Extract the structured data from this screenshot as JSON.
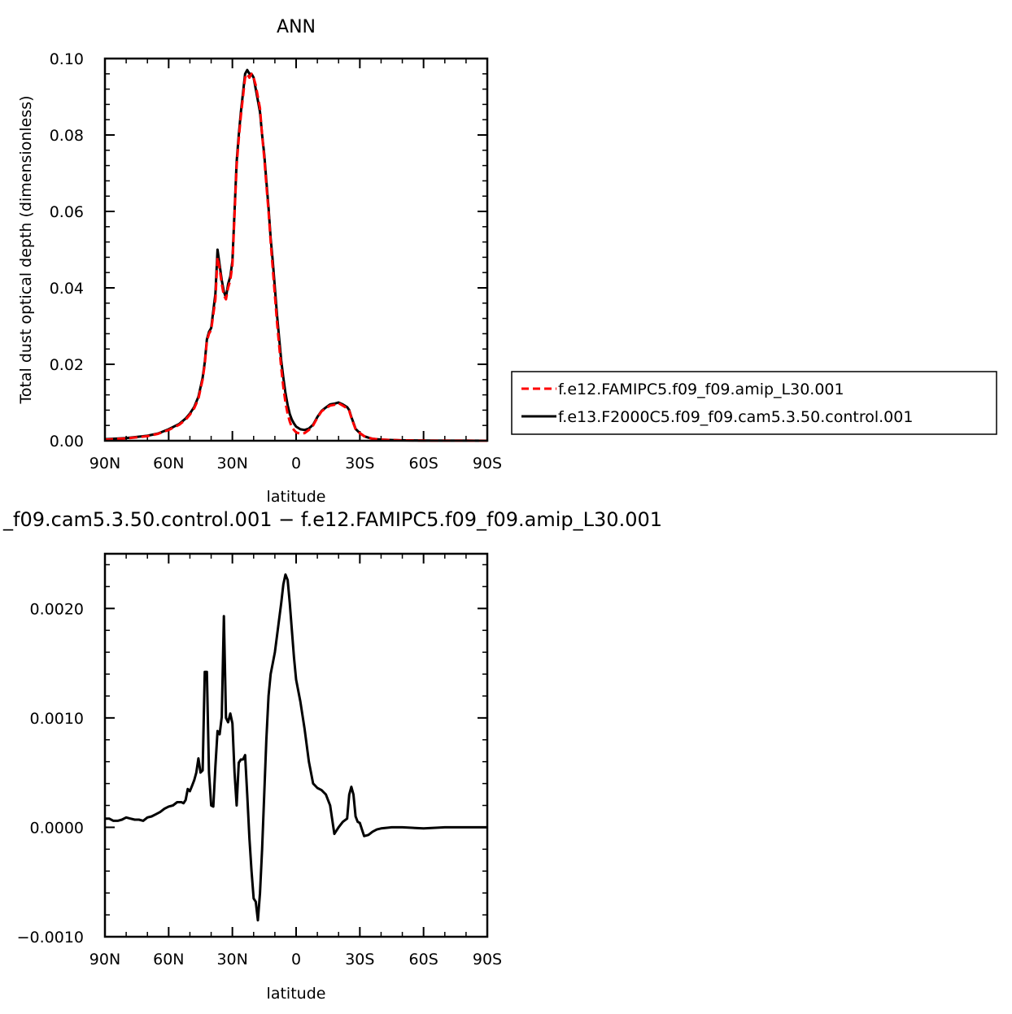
{
  "chart_data": [
    {
      "type": "line",
      "title": "ANN",
      "xlabel": "latitude",
      "ylabel": "Total dust optical depth (dimensionless)",
      "xlim": [
        90,
        -90
      ],
      "ylim": [
        0.0,
        0.1
      ],
      "x_ticks": [
        {
          "value": 90,
          "label": "90N"
        },
        {
          "value": 60,
          "label": "60N"
        },
        {
          "value": 30,
          "label": "30N"
        },
        {
          "value": 0,
          "label": "0"
        },
        {
          "value": -30,
          "label": "30S"
        },
        {
          "value": -60,
          "label": "60S"
        },
        {
          "value": -90,
          "label": "90S"
        }
      ],
      "y_ticks": [
        {
          "value": 0.0,
          "label": "0.00"
        },
        {
          "value": 0.02,
          "label": "0.02"
        },
        {
          "value": 0.04,
          "label": "0.04"
        },
        {
          "value": 0.06,
          "label": "0.06"
        },
        {
          "value": 0.08,
          "label": "0.08"
        },
        {
          "value": 0.1,
          "label": "0.10"
        }
      ],
      "grid": false,
      "legend_position": "right",
      "series": [
        {
          "name": "f.e12.FAMIPC5.f09_f09.amip_L30.001",
          "color": "#ff0000",
          "dash": "dashed",
          "x": [
            90,
            80,
            70,
            65,
            60,
            55,
            52,
            50,
            48,
            46,
            44,
            43,
            42,
            41,
            40,
            38,
            37,
            36,
            35,
            34,
            33,
            32,
            31,
            30,
            28,
            27,
            26,
            25,
            24,
            23,
            22,
            21,
            20,
            19,
            18,
            17,
            16,
            15,
            14,
            13,
            12,
            11,
            10,
            9,
            8,
            7,
            6,
            5,
            4,
            3,
            2,
            1,
            0,
            -2,
            -4,
            -6,
            -8,
            -10,
            -12,
            -14,
            -16,
            -18,
            -20,
            -22,
            -24,
            -25,
            -26,
            -27,
            -28,
            -30,
            -32,
            -34,
            -36,
            -40,
            -45,
            -50,
            -60,
            -70,
            -80,
            -90
          ],
          "y": [
            0.0003,
            0.0006,
            0.0012,
            0.0018,
            0.0028,
            0.0042,
            0.0055,
            0.0068,
            0.0085,
            0.011,
            0.016,
            0.02,
            0.026,
            0.028,
            0.029,
            0.037,
            0.048,
            0.045,
            0.041,
            0.038,
            0.037,
            0.04,
            0.042,
            0.046,
            0.072,
            0.079,
            0.085,
            0.09,
            0.095,
            0.096,
            0.095,
            0.096,
            0.095,
            0.093,
            0.09,
            0.087,
            0.08,
            0.074,
            0.067,
            0.06,
            0.052,
            0.045,
            0.038,
            0.031,
            0.025,
            0.019,
            0.014,
            0.01,
            0.007,
            0.005,
            0.0035,
            0.0028,
            0.0022,
            0.0018,
            0.002,
            0.0028,
            0.004,
            0.006,
            0.0077,
            0.0085,
            0.0092,
            0.0094,
            0.0098,
            0.0092,
            0.0085,
            0.0078,
            0.006,
            0.0045,
            0.003,
            0.002,
            0.0012,
            0.0008,
            0.0005,
            0.0003,
            0.0002,
            0.0001,
            5e-05,
            3e-05,
            2e-05,
            1e-05
          ]
        },
        {
          "name": "f.e13.F2000C5.f09_f09.cam5.3.50.control.001",
          "color": "#000000",
          "dash": "solid",
          "x": [
            90,
            80,
            70,
            65,
            60,
            55,
            52,
            50,
            48,
            46,
            44,
            43,
            42,
            41,
            40,
            38,
            37,
            36,
            35,
            34,
            33,
            32,
            31,
            30,
            28,
            27,
            26,
            25,
            24,
            23,
            22,
            21,
            20,
            19,
            18,
            17,
            16,
            15,
            14,
            13,
            12,
            11,
            10,
            9,
            8,
            7,
            6,
            5,
            4,
            3,
            2,
            1,
            0,
            -2,
            -4,
            -6,
            -8,
            -10,
            -12,
            -14,
            -16,
            -18,
            -20,
            -22,
            -24,
            -25,
            -26,
            -27,
            -28,
            -30,
            -32,
            -34,
            -36,
            -40,
            -45,
            -50,
            -60,
            -70,
            -80,
            -90
          ],
          "y": [
            0.0004,
            0.0007,
            0.0013,
            0.0019,
            0.003,
            0.0044,
            0.0058,
            0.0071,
            0.0088,
            0.0115,
            0.0165,
            0.0205,
            0.0265,
            0.0285,
            0.0295,
            0.0385,
            0.05,
            0.046,
            0.042,
            0.039,
            0.0375,
            0.041,
            0.043,
            0.047,
            0.073,
            0.08,
            0.086,
            0.091,
            0.096,
            0.097,
            0.096,
            0.096,
            0.095,
            0.092,
            0.089,
            0.086,
            0.08,
            0.075,
            0.068,
            0.061,
            0.053,
            0.047,
            0.04,
            0.033,
            0.027,
            0.021,
            0.0165,
            0.0125,
            0.0093,
            0.007,
            0.0055,
            0.0045,
            0.0037,
            0.003,
            0.0028,
            0.0032,
            0.0042,
            0.0062,
            0.0078,
            0.0087,
            0.0095,
            0.0097,
            0.01,
            0.0095,
            0.0088,
            0.008,
            0.0062,
            0.0047,
            0.0031,
            0.002,
            0.0012,
            0.0008,
            0.0005,
            0.0003,
            0.0002,
            0.0001,
            5e-05,
            3e-05,
            2e-05,
            1e-05
          ]
        }
      ]
    },
    {
      "type": "line",
      "title": "_f09.cam5.3.50.control.001 − f.e12.FAMIPC5.f09_f09.amip_L30.001",
      "xlabel": "latitude",
      "ylabel": "",
      "xlim": [
        90,
        -90
      ],
      "ylim": [
        -0.001,
        0.0025
      ],
      "x_ticks": [
        {
          "value": 90,
          "label": "90N"
        },
        {
          "value": 60,
          "label": "60N"
        },
        {
          "value": 30,
          "label": "30N"
        },
        {
          "value": 0,
          "label": "0"
        },
        {
          "value": -30,
          "label": "30S"
        },
        {
          "value": -60,
          "label": "60S"
        },
        {
          "value": -90,
          "label": "90S"
        }
      ],
      "y_ticks": [
        {
          "value": -0.001,
          "label": "−0.0010"
        },
        {
          "value": 0.0,
          "label": "0.0000"
        },
        {
          "value": 0.001,
          "label": "0.0010"
        },
        {
          "value": 0.002,
          "label": "0.0020"
        }
      ],
      "grid": false,
      "series": [
        {
          "color": "#000000",
          "dash": "solid",
          "x": [
            90,
            88,
            86,
            84,
            82,
            80,
            78,
            76,
            74,
            72,
            70,
            68,
            66,
            64,
            62,
            60,
            58,
            56,
            54,
            53,
            52,
            51,
            50,
            49,
            48,
            47,
            46,
            45,
            44,
            43,
            42,
            41,
            40,
            39,
            38,
            37,
            36,
            35,
            34,
            33,
            32,
            31,
            30,
            29,
            28,
            27,
            26,
            25,
            24,
            23,
            22,
            21,
            20,
            19,
            18,
            17,
            16,
            15,
            14,
            13,
            12,
            11,
            10,
            9,
            8,
            7,
            6,
            5,
            4,
            3,
            2,
            1,
            0,
            -2,
            -4,
            -6,
            -8,
            -10,
            -12,
            -14,
            -16,
            -18,
            -20,
            -22,
            -24,
            -25,
            -26,
            -27,
            -28,
            -29,
            -30,
            -32,
            -34,
            -36,
            -38,
            -40,
            -45,
            -50,
            -60,
            -70,
            -80,
            -90
          ],
          "y": [
            8e-05,
            8e-05,
            6e-05,
            6e-05,
            7e-05,
            9e-05,
            8e-05,
            7e-05,
            7e-05,
            6e-05,
            9e-05,
            0.0001,
            0.00012,
            0.00014,
            0.00017,
            0.00019,
            0.0002,
            0.00023,
            0.00023,
            0.00022,
            0.00025,
            0.00035,
            0.00033,
            0.00038,
            0.00043,
            0.0005,
            0.00063,
            0.0005,
            0.00052,
            0.00142,
            0.00142,
            0.0005,
            0.0002,
            0.00019,
            0.00056,
            0.00088,
            0.00085,
            0.00101,
            0.00193,
            0.001,
            0.00096,
            0.00104,
            0.00095,
            0.0005,
            0.0002,
            0.00059,
            0.00062,
            0.00062,
            0.00066,
            0.0003,
            -0.0001,
            -0.0004,
            -0.00065,
            -0.00068,
            -0.00085,
            -0.0006,
            -0.0002,
            0.0003,
            0.0008,
            0.0012,
            0.0014,
            0.0015,
            0.0016,
            0.00175,
            0.0019,
            0.00205,
            0.00222,
            0.00231,
            0.00226,
            0.00205,
            0.0018,
            0.00155,
            0.00135,
            0.00115,
            0.0009,
            0.0006,
            0.0004,
            0.00036,
            0.00034,
            0.0003,
            0.0002,
            -6e-05,
            0.0,
            5e-05,
            8e-05,
            0.0003,
            0.00037,
            0.0003,
            0.0001,
            5e-05,
            4e-05,
            -8e-05,
            -7e-05,
            -4e-05,
            -2e-05,
            -1e-05,
            0.0,
            0.0,
            -1e-05,
            0.0,
            0.0,
            0.0
          ]
        }
      ]
    }
  ]
}
